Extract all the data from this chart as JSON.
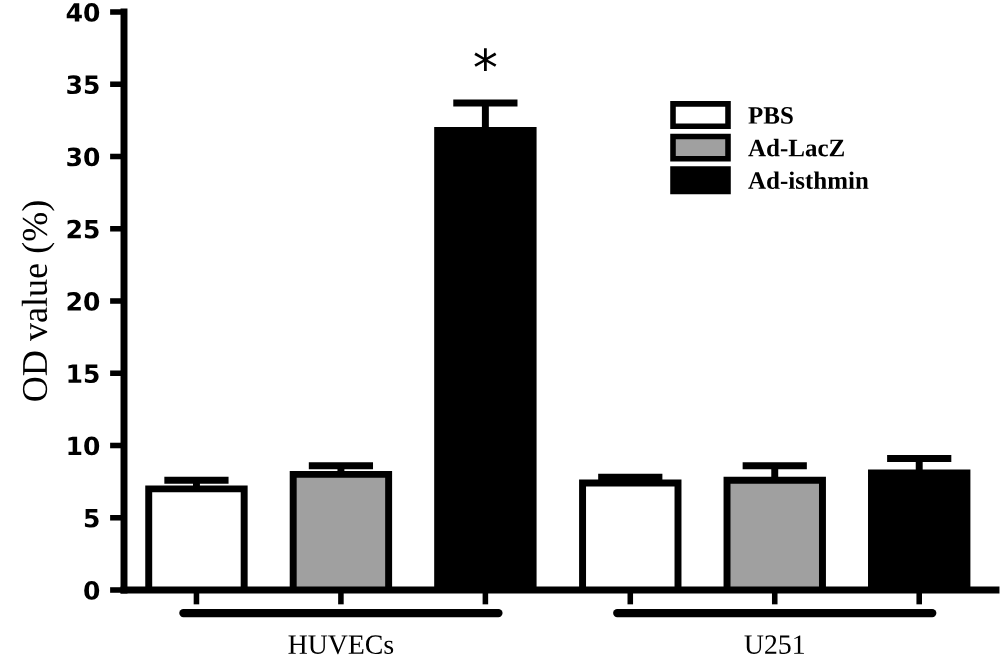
{
  "chart_data": {
    "type": "bar",
    "ylabel": "OD value (%)",
    "categories": [
      "HUVECs",
      "U251"
    ],
    "series": [
      {
        "name": "PBS",
        "color": "#ffffff",
        "values": [
          7.0,
          7.4
        ],
        "errors": [
          [
            7.0,
            7.6
          ],
          [
            7.4,
            7.8
          ]
        ]
      },
      {
        "name": "Ad-LacZ",
        "color": "#a0a0a0",
        "values": [
          8.0,
          7.6
        ],
        "errors": [
          [
            8.0,
            8.6
          ],
          [
            7.6,
            8.6
          ]
        ]
      },
      {
        "name": "Ad-isthmin",
        "color": "#000000",
        "values": [
          31.8,
          8.1
        ],
        "errors": [
          [
            31.8,
            33.7
          ],
          [
            8.1,
            9.1
          ]
        ]
      }
    ],
    "ylim": [
      0,
      40
    ],
    "yticks": [
      0,
      5,
      10,
      15,
      20,
      25,
      30,
      35,
      40
    ],
    "annotations": [
      "*"
    ],
    "legend": "top right",
    "grid": false
  }
}
